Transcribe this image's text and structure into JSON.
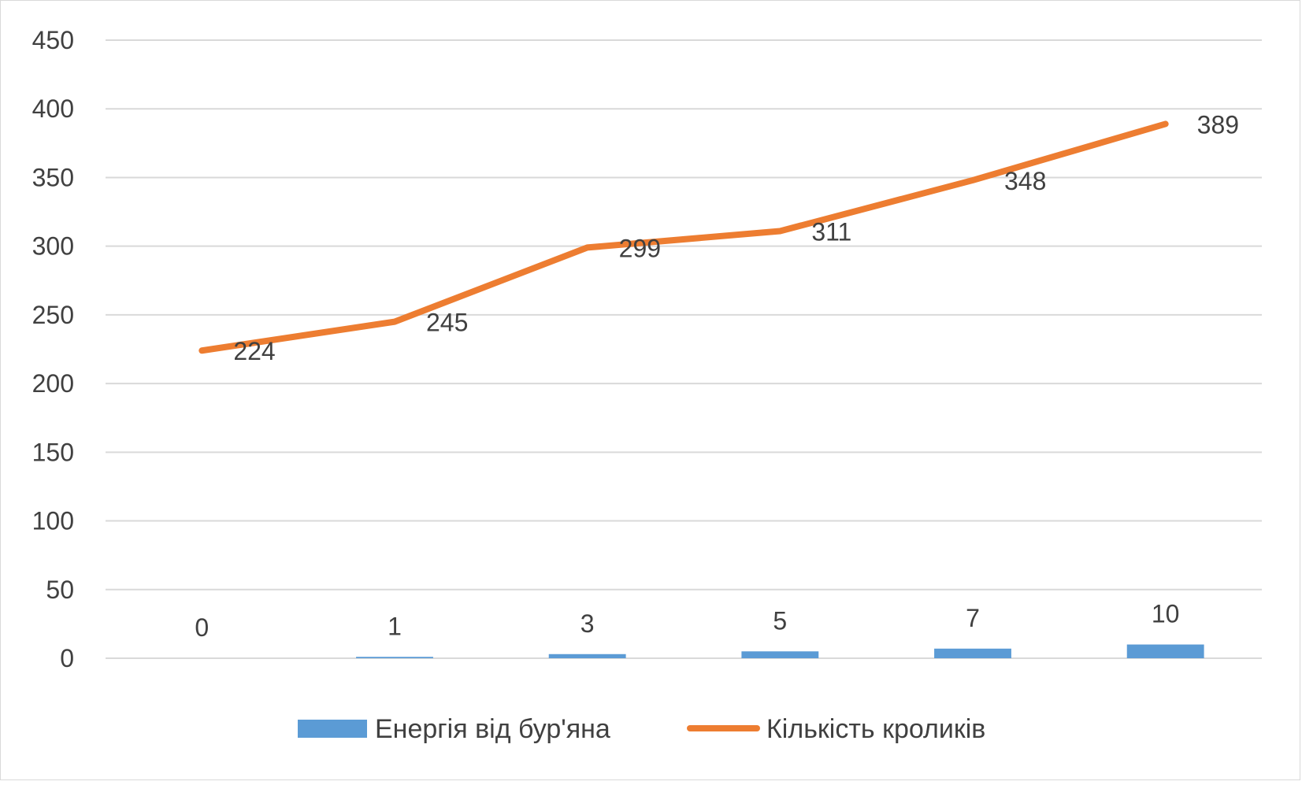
{
  "chart_data": {
    "type": "bar+line",
    "categories": [
      "0",
      "1",
      "3",
      "5",
      "7",
      "10"
    ],
    "ylim": [
      0,
      450
    ],
    "yticks": [
      0,
      50,
      100,
      150,
      200,
      250,
      300,
      350,
      400,
      450
    ],
    "grid": true,
    "legend_position": "bottom",
    "series": [
      {
        "name": "Енергія від бур'яна",
        "kind": "bar",
        "color": "#5b9bd5",
        "values": [
          0,
          1,
          3,
          5,
          7,
          10
        ],
        "labels": [
          "0",
          "1",
          "3",
          "5",
          "7",
          "10"
        ]
      },
      {
        "name": "Кількість кроликів",
        "kind": "line",
        "color": "#ed7d31",
        "values": [
          224,
          245,
          299,
          311,
          348,
          389
        ],
        "labels": [
          "224",
          "245",
          "299",
          "311",
          "348",
          "389"
        ]
      }
    ]
  }
}
